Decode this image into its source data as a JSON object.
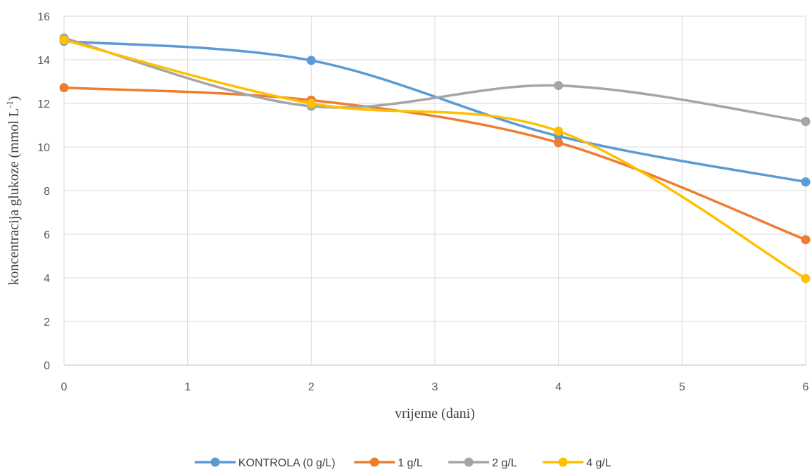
{
  "chart_data": {
    "type": "line",
    "title": "",
    "xlabel": "vrijeme (dani)",
    "ylabel_main": "koncentracija glukoze (mmol L",
    "ylabel_sup": "-1",
    "ylabel_end": ")",
    "xlim": [
      0,
      6
    ],
    "ylim": [
      0,
      16
    ],
    "xticks": [
      0,
      1,
      2,
      3,
      4,
      5,
      6
    ],
    "yticks": [
      0,
      2,
      4,
      6,
      8,
      10,
      12,
      14,
      16
    ],
    "grid": true,
    "smooth": true,
    "legend_position": "bottom",
    "x": [
      0,
      2,
      4,
      6
    ],
    "series": [
      {
        "name": "KONTROLA (0 g/L)",
        "color": "#5b9bd5",
        "values": [
          14.85,
          13.97,
          10.5,
          8.4
        ]
      },
      {
        "name": "1 g/L",
        "color": "#ed7d31",
        "values": [
          12.72,
          12.15,
          10.2,
          5.75
        ]
      },
      {
        "name": "2 g/L",
        "color": "#a5a5a5",
        "values": [
          15.0,
          11.87,
          12.82,
          11.17
        ]
      },
      {
        "name": "4 g/L",
        "color": "#ffc000",
        "values": [
          14.9,
          12.0,
          10.73,
          3.97
        ]
      }
    ]
  }
}
